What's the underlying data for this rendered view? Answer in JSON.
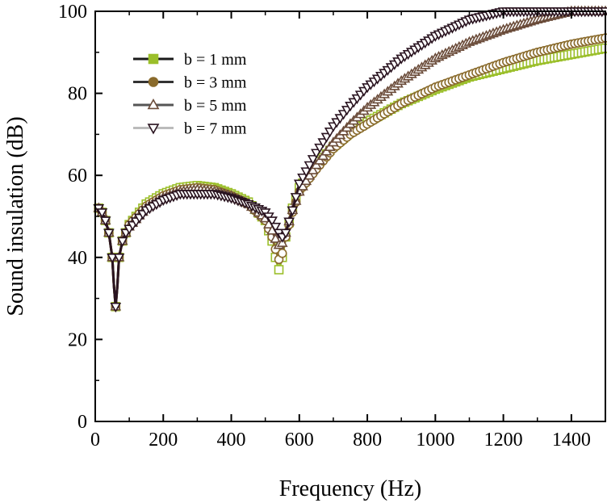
{
  "chart_data": {
    "type": "line",
    "title": "",
    "xlabel": "Frequency (Hz)",
    "ylabel": "Sound insulation (dB)",
    "xlim": [
      0,
      1500
    ],
    "ylim": [
      0,
      100
    ],
    "xticks": [
      0,
      200,
      400,
      600,
      800,
      1000,
      1200,
      1400
    ],
    "yticks": [
      0,
      20,
      40,
      60,
      80,
      100
    ],
    "legend_position": "top-left",
    "series": [
      {
        "name": "b = 1 mm",
        "line_color": "#9bbf2a",
        "marker": "square",
        "marker_edge": "#9bbf2a",
        "marker_fill": "#ffffff",
        "legend_line": "#1a1a1a",
        "legend_marker_fill": "#9bbf2a",
        "x": [
          10,
          20,
          30,
          40,
          50,
          55,
          60,
          65,
          70,
          80,
          90,
          100,
          150,
          200,
          250,
          300,
          350,
          400,
          450,
          500,
          520,
          530,
          540,
          550,
          560,
          580,
          600,
          650,
          700,
          750,
          800,
          900,
          1000,
          1100,
          1200,
          1300,
          1400,
          1500
        ],
        "y": [
          52,
          51,
          49,
          46,
          40,
          33,
          28,
          33,
          40,
          44,
          46,
          48,
          53,
          55.5,
          57,
          57.5,
          57,
          55.5,
          53.5,
          49,
          44,
          40,
          37,
          40,
          45,
          52,
          57,
          62.5,
          67,
          70.5,
          73,
          77.5,
          81,
          84,
          86,
          88,
          89.5,
          91
        ]
      },
      {
        "name": "b = 3 mm",
        "line_color": "#8a6b2c",
        "marker": "circle",
        "marker_edge": "#8a6b2c",
        "marker_fill": "#ffffff",
        "legend_line": "#333333",
        "legend_marker_fill": "#8a6b2c",
        "x": [
          10,
          20,
          30,
          40,
          50,
          55,
          60,
          65,
          70,
          80,
          90,
          100,
          150,
          200,
          250,
          300,
          350,
          400,
          450,
          500,
          520,
          530,
          540,
          550,
          560,
          580,
          600,
          650,
          700,
          750,
          800,
          900,
          1000,
          1100,
          1200,
          1300,
          1400,
          1500
        ],
        "y": [
          52,
          51,
          49,
          46,
          40,
          33,
          28,
          33,
          40,
          44,
          46,
          48,
          52.5,
          55,
          56.5,
          57,
          56.5,
          55,
          53,
          49,
          45,
          42,
          39.5,
          41,
          45,
          51,
          56,
          61.5,
          66.5,
          70,
          72.5,
          77.5,
          81.5,
          84.5,
          87.5,
          90,
          92,
          93.5
        ]
      },
      {
        "name": "b = 5 mm",
        "line_color": "#6b4c3a",
        "marker": "triangle-up",
        "marker_edge": "#6b4c3a",
        "marker_fill": "#ffffff",
        "legend_line": "#555555",
        "legend_marker_fill": "#ffffff",
        "x": [
          10,
          20,
          30,
          40,
          50,
          55,
          60,
          65,
          70,
          80,
          90,
          100,
          150,
          200,
          250,
          300,
          350,
          400,
          450,
          500,
          520,
          530,
          540,
          550,
          560,
          580,
          600,
          650,
          700,
          750,
          800,
          900,
          1000,
          1100,
          1200,
          1300,
          1400,
          1500
        ],
        "y": [
          52,
          51,
          49,
          46,
          40,
          33,
          28,
          33,
          40,
          44,
          46,
          47.5,
          52,
          54.5,
          56,
          56.5,
          56,
          55,
          53,
          49.5,
          46.5,
          44.5,
          43,
          43.5,
          46,
          51.5,
          56,
          62.5,
          68,
          72.5,
          76.5,
          83,
          88.5,
          92.5,
          95.5,
          98,
          100,
          100
        ]
      },
      {
        "name": "b = 7 mm",
        "line_color": "#2a1420",
        "marker": "triangle-down",
        "marker_edge": "#2a1420",
        "marker_fill": "#ffffff",
        "legend_line": "#bbbbbb",
        "legend_marker_fill": "#ffffff",
        "x": [
          10,
          20,
          30,
          40,
          50,
          55,
          60,
          65,
          70,
          80,
          90,
          100,
          150,
          200,
          250,
          300,
          350,
          400,
          450,
          500,
          520,
          530,
          540,
          550,
          560,
          580,
          600,
          650,
          700,
          750,
          800,
          900,
          1000,
          1100,
          1200,
          1300,
          1400,
          1500
        ],
        "y": [
          52,
          51,
          49,
          46,
          40,
          33,
          28,
          33,
          40,
          44,
          46,
          47,
          51.5,
          54,
          55.5,
          55.5,
          55.5,
          54.5,
          53,
          51,
          49,
          47.5,
          46,
          45,
          46,
          51.5,
          58,
          65.5,
          72,
          77,
          81.5,
          88.5,
          94,
          98,
          100,
          100,
          100,
          100
        ]
      }
    ]
  }
}
